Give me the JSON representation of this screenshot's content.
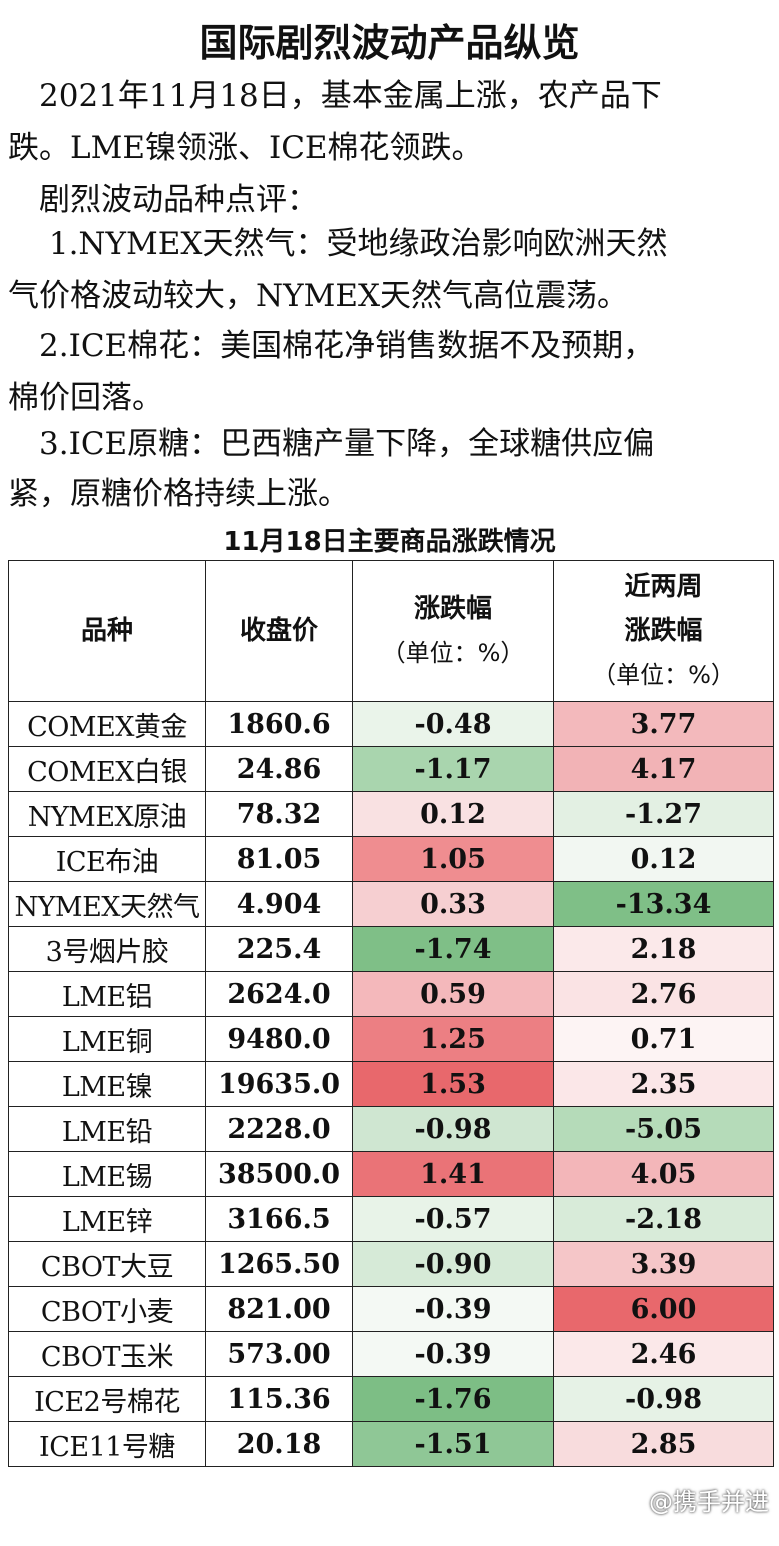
{
  "title": "国际剧烈波动产品纵览",
  "paragraphs": [
    {
      "line1": "　2021年11月18日，基本金属上涨，农产品下",
      "line2": "跌。LME镍领涨、ICE棉花领跌。"
    },
    {
      "line1": "　剧烈波动品种点评："
    },
    {
      "line1": "　 1.NYMEX天然气：受地缘政治影响欧洲天然",
      "line2": " 气价格波动较大，NYMEX天然气高位震荡。"
    },
    {
      "line1": "　2.ICE棉花：美国棉花净销售数据不及预期，",
      "line2": "棉价回落。"
    },
    {
      "line1": "　3.ICE原糖：巴西糖产量下降，全球糖供应偏",
      "line2": "紧，原糖价格持续上涨。"
    }
  ],
  "table": {
    "title": "11月18日主要商品涨跌情况",
    "headers": {
      "variety": "品种",
      "close": "收盘价",
      "change_l1": "涨跌幅",
      "change_l2": "（单位：%）",
      "twoweek_l1": "近两周",
      "twoweek_l2": "涨跌幅",
      "twoweek_l3": "（单位：%）"
    },
    "rows": [
      {
        "name": "COMEX黄金",
        "close": "1860.6",
        "change": "-0.48",
        "twoweek": "3.77",
        "change_color": "#eaf4ea",
        "twoweek_color": "#f3b9bc"
      },
      {
        "name": "COMEX白银",
        "close": "24.86",
        "change": "-1.17",
        "twoweek": "4.17",
        "change_color": "#a9d5ae",
        "twoweek_color": "#f2b3b6"
      },
      {
        "name": "NYMEX原油",
        "close": "78.32",
        "change": "0.12",
        "twoweek": "-1.27",
        "change_color": "#f9e1e2",
        "twoweek_color": "#e3f0e3"
      },
      {
        "name": "ICE布油",
        "close": "81.05",
        "change": "1.05",
        "twoweek": "0.12",
        "change_color": "#ef8d90",
        "twoweek_color": "#f2f7f2"
      },
      {
        "name": "NYMEX天然气",
        "close": "4.904",
        "change": "0.33",
        "twoweek": "-13.34",
        "change_color": "#f6cfd1",
        "twoweek_color": "#7fbf87"
      },
      {
        "name": "3号烟片胶",
        "close": "225.4",
        "change": "-1.74",
        "twoweek": "2.18",
        "change_color": "#7fbf87",
        "twoweek_color": "#fbe9ea"
      },
      {
        "name": "LME铝",
        "close": "2624.0",
        "change": "0.59",
        "twoweek": "2.76",
        "change_color": "#f4b8bb",
        "twoweek_color": "#fae3e4"
      },
      {
        "name": "LME铜",
        "close": "9480.0",
        "change": "1.25",
        "twoweek": "0.71",
        "change_color": "#ec7f83",
        "twoweek_color": "#fdf4f4"
      },
      {
        "name": "LME镍",
        "close": "19635.0",
        "change": "1.53",
        "twoweek": "2.35",
        "change_color": "#e8686c",
        "twoweek_color": "#fbe7e8"
      },
      {
        "name": "LME铅",
        "close": "2228.0",
        "change": "-0.98",
        "twoweek": "-5.05",
        "change_color": "#cfe6d1",
        "twoweek_color": "#b5dbb9"
      },
      {
        "name": "LME锡",
        "close": "38500.0",
        "change": "1.41",
        "twoweek": "4.05",
        "change_color": "#ea7377",
        "twoweek_color": "#f3b6b9"
      },
      {
        "name": "LME锌",
        "close": "3166.5",
        "change": "-0.57",
        "twoweek": "-2.18",
        "change_color": "#e8f3e8",
        "twoweek_color": "#d8ebd9"
      },
      {
        "name": "CBOT大豆",
        "close": "1265.50",
        "change": "-0.90",
        "twoweek": "3.39",
        "change_color": "#d6ead7",
        "twoweek_color": "#f5c6c8"
      },
      {
        "name": "CBOT小麦",
        "close": "821.00",
        "change": "-0.39",
        "twoweek": "6.00",
        "change_color": "#f4f9f4",
        "twoweek_color": "#e8686c"
      },
      {
        "name": "CBOT玉米",
        "close": "573.00",
        "change": "-0.39",
        "twoweek": "2.46",
        "change_color": "#f4f9f4",
        "twoweek_color": "#fbe8e9"
      },
      {
        "name": "ICE2号棉花",
        "close": "115.36",
        "change": "-1.76",
        "twoweek": "-0.98",
        "change_color": "#7dbe85",
        "twoweek_color": "#e6f2e6"
      },
      {
        "name": "ICE11号糖",
        "close": "20.18",
        "change": "-1.51",
        "twoweek": "2.85",
        "change_color": "#8fc796",
        "twoweek_color": "#f8dcdd"
      }
    ]
  },
  "watermark": "@携手并进"
}
